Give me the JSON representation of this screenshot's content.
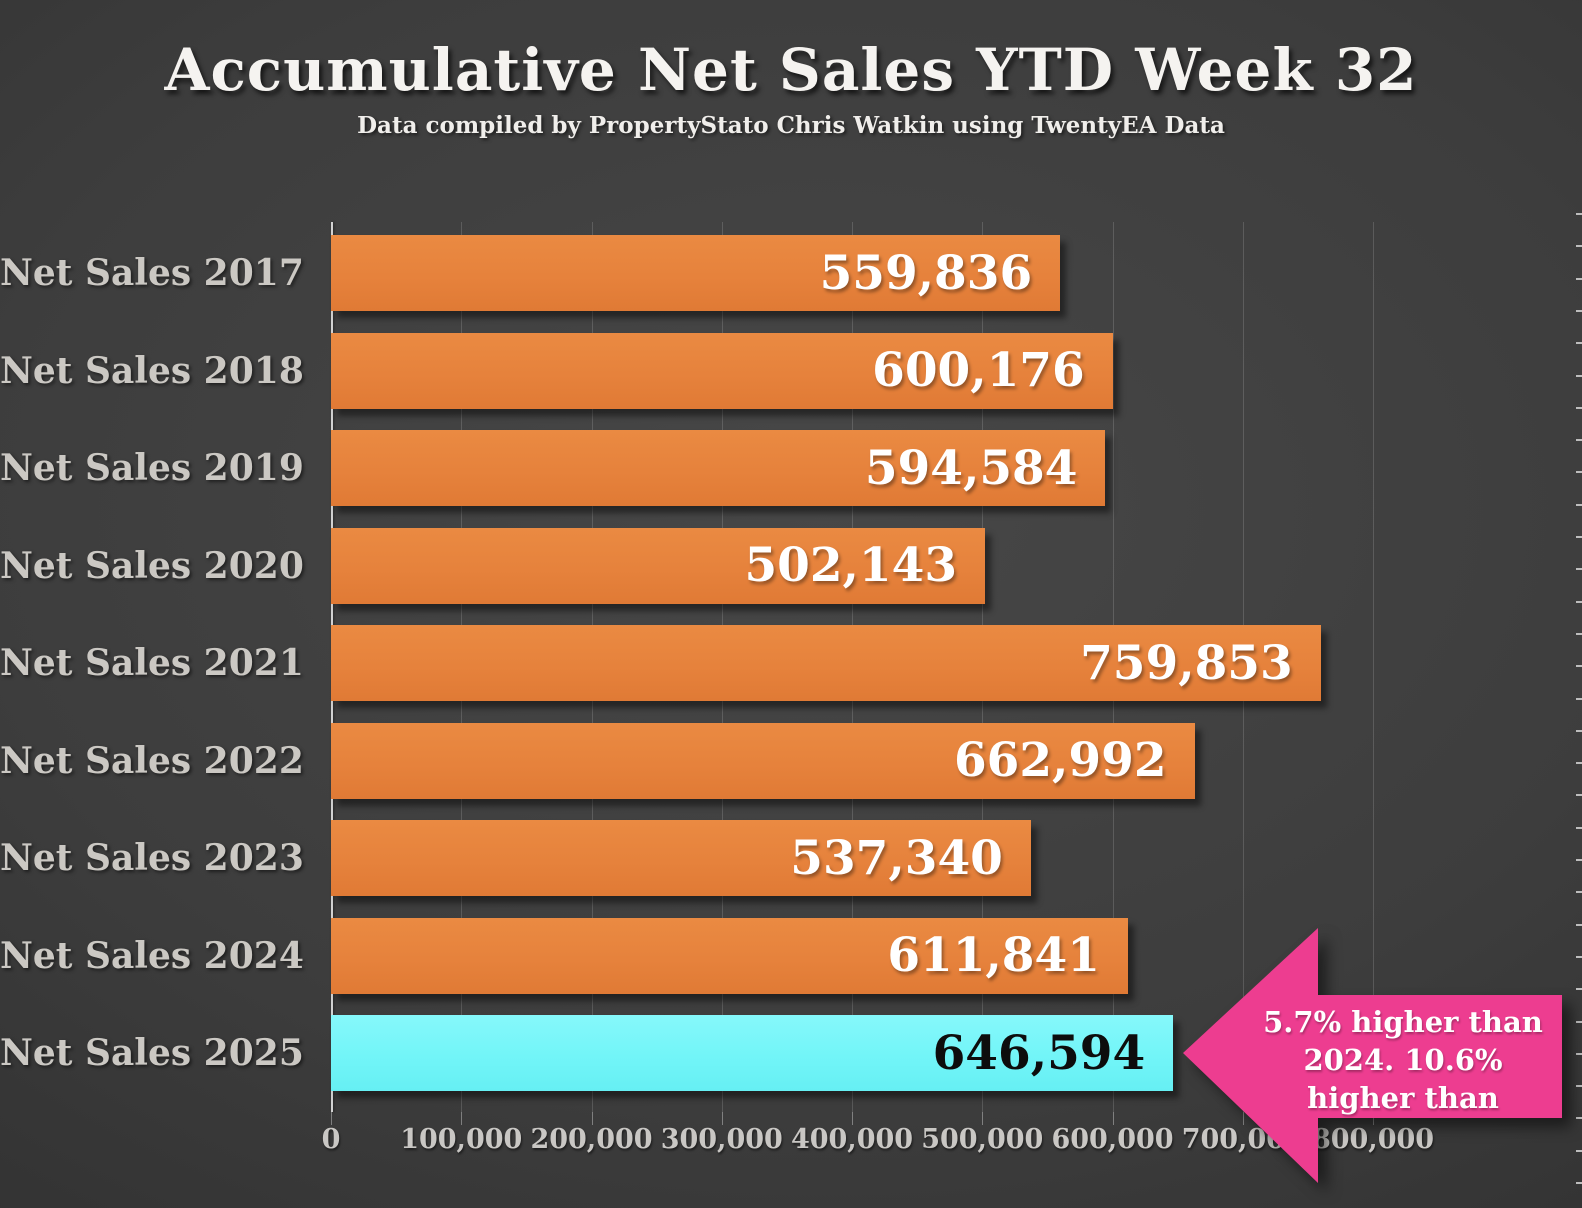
{
  "title": "Accumulative Net Sales YTD Week 32",
  "subtitle": "Data compiled by PropertyStato Chris Watkin using TwentyEA Data",
  "chart_data": {
    "type": "bar",
    "orientation": "horizontal",
    "categories": [
      "Net Sales 2017",
      "Net Sales 2018",
      "Net Sales 2019",
      "Net Sales 2020",
      "Net Sales 2021",
      "Net Sales 2022",
      "Net Sales 2023",
      "Net Sales 2024",
      "Net Sales 2025"
    ],
    "values": [
      559836,
      600176,
      594584,
      502143,
      759853,
      662992,
      537340,
      611841,
      646594
    ],
    "value_labels": [
      "559,836",
      "600,176",
      "594,584",
      "502,143",
      "759,853",
      "662,992",
      "537,340",
      "611,841",
      "646,594"
    ],
    "x_ticks": [
      "0",
      "100,000",
      "200,000",
      "300,000",
      "400,000",
      "500,000",
      "600,000",
      "700,000",
      "800,000"
    ],
    "xlim": [
      0,
      800000
    ],
    "grid": true,
    "legend": false,
    "highlight_index": 8,
    "bar_color": "#E6823C",
    "highlight_color": "#72F5F8"
  },
  "annotation": {
    "text": "5.7% higher than 2024. 10.6% higher than",
    "lines": [
      "5.7% higher than",
      "2024. 10.6%",
      "higher than"
    ],
    "color": "#ED3D90"
  },
  "colors": {
    "background": "#3D3D3D",
    "title_text": "#F5F3F0",
    "category_text": "#CBC8C3",
    "axis_text": "#C9C7C4",
    "bar_value_text": "#FFFFFF",
    "highlight_value_text": "#0D0D0D"
  }
}
